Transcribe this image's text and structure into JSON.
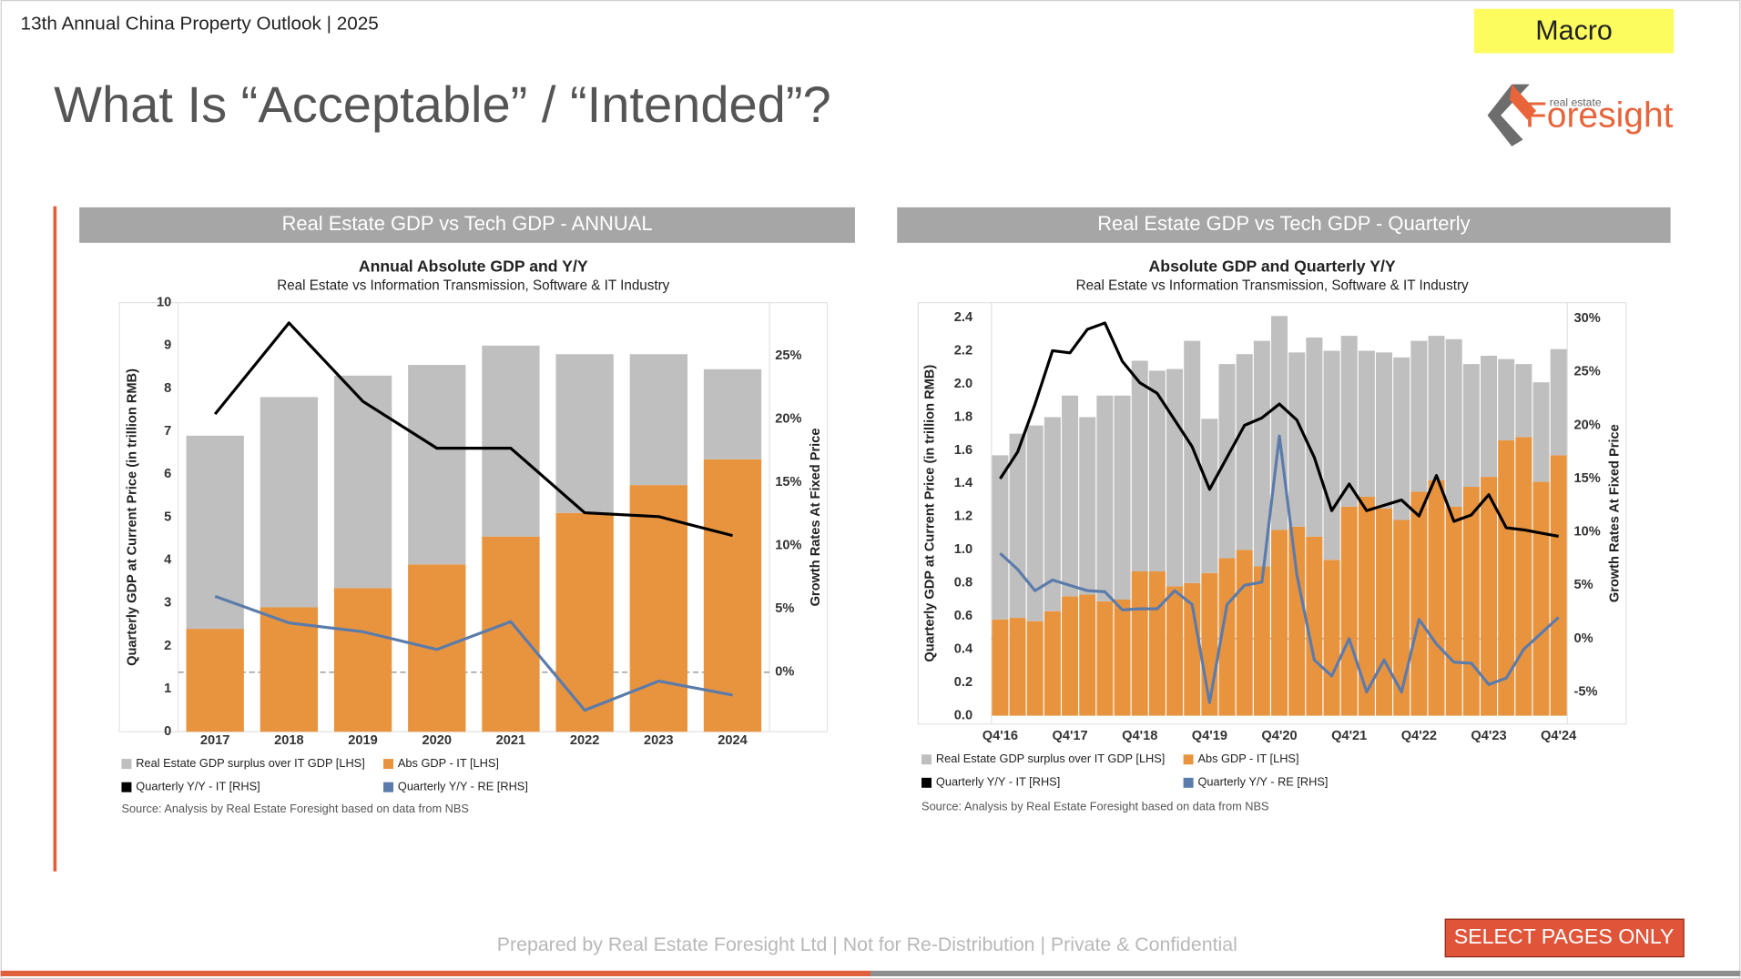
{
  "header": {
    "deck": "13th Annual China Property Outlook | 2025",
    "section": "Macro",
    "title": "What Is “Acceptable” / “Intended”?",
    "logo_small": "real estate",
    "logo_big": "Foresight"
  },
  "chart_data": [
    {
      "type": "bar",
      "stacked": true,
      "panel_title": "Real Estate GDP vs Tech GDP - ANNUAL",
      "title": "Annual Absolute GDP and Y/Y",
      "subtitle": "Real Estate vs Information Transmission, Software & IT Industry",
      "y_label": "Quarterly GDP at Current Price (in trillion RMB)",
      "y2_label": "Growth Rates At Fixed Price",
      "source": "Source: Analysis by Real Estate Foresight based on data from NBS",
      "categories": [
        "2017",
        "2018",
        "2019",
        "2020",
        "2021",
        "2022",
        "2023",
        "2024"
      ],
      "series": [
        {
          "name": "Real Estate GDP surplus over IT GDP [LHS]",
          "kind": "bar",
          "color": "#bfbfbf",
          "values": [
            4.5,
            4.9,
            4.95,
            4.65,
            4.45,
            3.7,
            3.05,
            2.1
          ]
        },
        {
          "name": "Abs GDP - IT [LHS]",
          "kind": "bar",
          "color": "#e8943f",
          "values": [
            2.4,
            2.9,
            3.35,
            3.9,
            4.55,
            5.1,
            5.75,
            6.35
          ]
        },
        {
          "name": "Quarterly Y/Y - IT [RHS]",
          "kind": "line",
          "axis": "y2",
          "color": "#000000",
          "values": [
            20.4,
            27.6,
            21.4,
            17.7,
            17.7,
            12.6,
            12.3,
            10.8
          ]
        },
        {
          "name": "Quarterly Y/Y - RE [RHS]",
          "kind": "line",
          "axis": "y2",
          "color": "#5b7bab",
          "values": [
            6.0,
            3.9,
            3.2,
            1.8,
            4.0,
            -3.0,
            -0.7,
            -1.8
          ]
        }
      ],
      "ylim": [
        0,
        10
      ],
      "yticks": [
        0,
        1,
        2,
        3,
        4,
        5,
        6,
        7,
        8,
        9,
        10
      ],
      "y2lim": [
        -4.7,
        29.2
      ],
      "y2ticks": [
        {
          "value": 0,
          "label": "0%"
        },
        {
          "value": 5,
          "label": "5%"
        },
        {
          "value": 10,
          "label": "10%"
        },
        {
          "value": 15,
          "label": "15%"
        },
        {
          "value": 20,
          "label": "20%"
        },
        {
          "value": 25,
          "label": "25%"
        }
      ],
      "y2_reference": 0
    },
    {
      "type": "bar",
      "stacked": true,
      "panel_title": "Real Estate GDP vs Tech GDP - Quarterly",
      "title": "Absolute GDP and Quarterly Y/Y",
      "subtitle": "Real Estate vs Information Transmission, Software & IT Industry",
      "y_label": "Quarterly GDP at Current Price (in trillion RMB)",
      "y2_label": "Growth Rates At Fixed Price",
      "source": "Source: Analysis by Real Estate Foresight based on data from NBS",
      "categories": [
        "Q4'16",
        null,
        null,
        null,
        "Q4'17",
        null,
        null,
        null,
        "Q4'18",
        null,
        null,
        null,
        "Q4'19",
        null,
        null,
        null,
        "Q4'20",
        null,
        null,
        null,
        "Q4'21",
        null,
        null,
        null,
        "Q4'22",
        null,
        null,
        null,
        "Q4'23",
        null,
        null,
        null,
        "Q4'24"
      ],
      "series": [
        {
          "name": "Real Estate GDP surplus over IT GDP [LHS]",
          "kind": "bar",
          "color": "#bfbfbf",
          "values": [
            0.99,
            1.11,
            1.18,
            1.17,
            1.21,
            1.07,
            1.24,
            1.23,
            1.27,
            1.21,
            1.31,
            1.46,
            0.93,
            1.17,
            1.18,
            1.36,
            1.29,
            1.05,
            1.2,
            1.26,
            1.03,
            0.88,
            0.94,
            0.98,
            0.91,
            0.87,
            1.01,
            0.74,
            0.73,
            0.49,
            0.44,
            0.6,
            0.64
          ]
        },
        {
          "name": "Abs GDP - IT [LHS]",
          "kind": "bar",
          "color": "#e8943f",
          "values": [
            0.58,
            0.59,
            0.57,
            0.63,
            0.72,
            0.73,
            0.69,
            0.7,
            0.87,
            0.87,
            0.78,
            0.8,
            0.86,
            0.95,
            1.0,
            0.9,
            1.12,
            1.14,
            1.08,
            0.94,
            1.26,
            1.32,
            1.25,
            1.18,
            1.35,
            1.42,
            1.26,
            1.38,
            1.44,
            1.66,
            1.68,
            1.41,
            1.57
          ]
        },
        {
          "name": "Quarterly Y/Y - IT [RHS]",
          "kind": "line",
          "axis": "y2",
          "color": "#000000",
          "values": [
            15.0,
            17.5,
            22.0,
            27.0,
            26.8,
            29.0,
            29.6,
            26.0,
            24.0,
            23.0,
            20.5,
            18.0,
            14.0,
            17.0,
            20.0,
            20.7,
            22.0,
            20.5,
            17.0,
            12.0,
            14.5,
            12.0,
            12.5,
            13.0,
            11.5,
            15.3,
            11.0,
            11.6,
            13.5,
            10.4,
            10.2,
            9.9,
            9.6
          ]
        },
        {
          "name": "Quarterly Y/Y - RE [RHS]",
          "kind": "line",
          "axis": "y2",
          "color": "#5b7bab",
          "values": [
            8.0,
            6.5,
            4.5,
            5.5,
            5.0,
            4.5,
            4.4,
            2.7,
            2.8,
            2.8,
            4.5,
            3.2,
            -6.0,
            3.2,
            5.0,
            5.3,
            19.0,
            6.0,
            -2.0,
            -3.5,
            0.0,
            -5.0,
            -2.0,
            -5.0,
            1.8,
            -0.5,
            -2.2,
            -2.3,
            -4.3,
            -3.7,
            -1.0,
            0.5,
            2.0
          ]
        }
      ],
      "ylim": [
        -0.05,
        2.49
      ],
      "yticks": [
        {
          "value": 0,
          "label": "0.0"
        },
        0.2,
        0.4,
        0.6,
        0.8,
        {
          "value": 1,
          "label": "1.0"
        },
        1.2,
        1.4,
        1.6,
        1.8,
        {
          "value": 2,
          "label": "2.0"
        },
        2.2,
        2.4
      ],
      "y2lim": [
        -8.0,
        31.5
      ],
      "y2ticks": [
        {
          "value": -5,
          "label": "-5%"
        },
        {
          "value": 0,
          "label": "0%"
        },
        {
          "value": 5,
          "label": "5%"
        },
        {
          "value": 10,
          "label": "10%"
        },
        {
          "value": 15,
          "label": "15%"
        },
        {
          "value": 20,
          "label": "20%"
        },
        {
          "value": 25,
          "label": "25%"
        },
        {
          "value": 30,
          "label": "30%"
        }
      ],
      "y2_reference": 0
    }
  ],
  "footer": {
    "notice": "Prepared by Real Estate Foresight Ltd | Not for Re-Distribution | Private & Confidential",
    "badge": "SELECT PAGES ONLY"
  }
}
